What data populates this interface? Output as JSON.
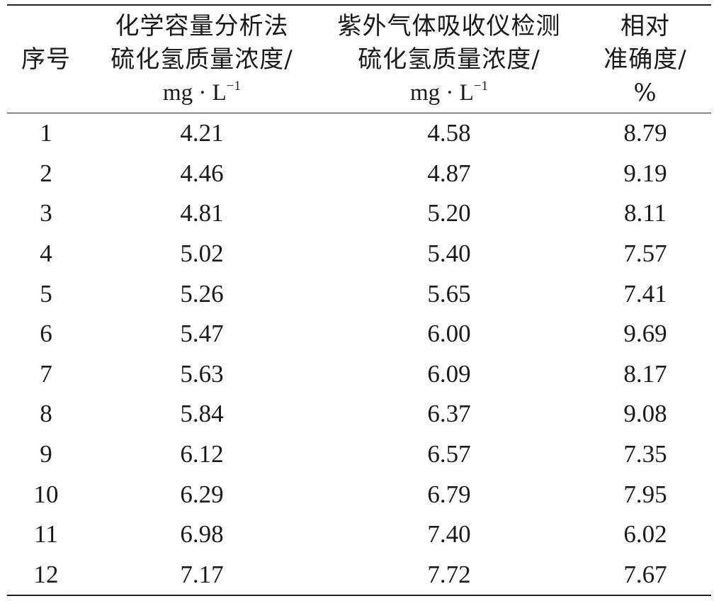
{
  "table": {
    "headers": [
      {
        "lines": [
          "序号"
        ],
        "unit": ""
      },
      {
        "lines": [
          "化学容量分析法",
          "硫化氢质量浓度/"
        ],
        "unit": "mg · L",
        "unit_sup": "−1"
      },
      {
        "lines": [
          "紫外气体吸收仪检测",
          "硫化氢质量浓度/"
        ],
        "unit": "mg · L",
        "unit_sup": "−1"
      },
      {
        "lines": [
          "相对",
          "准确度/",
          "%"
        ],
        "unit": ""
      }
    ],
    "rows": [
      [
        "1",
        "4.21",
        "4.58",
        "8.79"
      ],
      [
        "2",
        "4.46",
        "4.87",
        "9.19"
      ],
      [
        "3",
        "4.81",
        "5.20",
        "8.11"
      ],
      [
        "4",
        "5.02",
        "5.40",
        "7.57"
      ],
      [
        "5",
        "5.26",
        "5.65",
        "7.41"
      ],
      [
        "6",
        "5.47",
        "6.00",
        "9.69"
      ],
      [
        "7",
        "5.63",
        "6.09",
        "8.17"
      ],
      [
        "8",
        "5.84",
        "6.37",
        "9.08"
      ],
      [
        "9",
        "6.12",
        "6.57",
        "7.35"
      ],
      [
        "10",
        "6.29",
        "6.79",
        "7.95"
      ],
      [
        "11",
        "6.98",
        "7.40",
        "6.02"
      ],
      [
        "12",
        "7.17",
        "7.72",
        "7.67"
      ]
    ]
  }
}
